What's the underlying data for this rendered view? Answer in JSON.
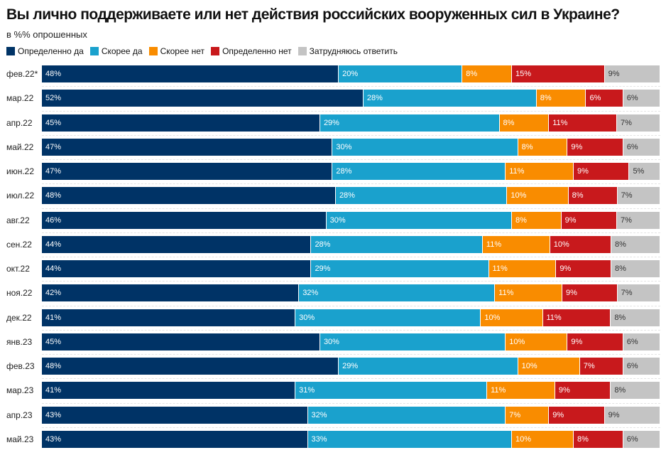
{
  "chart_data": {
    "type": "bar",
    "orientation": "horizontal",
    "stacked": true,
    "title": "Вы лично поддерживаете или нет действия российских вооруженных сил в Украине?",
    "subtitle": "в %% опрошенных",
    "legend_position": "top-left",
    "grid": false,
    "categories": [
      "фев.22*",
      "мар.22",
      "апр.22",
      "май.22",
      "июн.22",
      "июл.22",
      "авг.22",
      "сен.22",
      "окт.22",
      "ноя.22",
      "дек.22",
      "янв.23",
      "фев.23",
      "мар.23",
      "апр.23",
      "май.23"
    ],
    "series": [
      {
        "name": "Определенно да",
        "color": "#003366",
        "values": [
          48,
          52,
          45,
          47,
          47,
          48,
          46,
          44,
          44,
          42,
          41,
          45,
          48,
          41,
          43,
          43
        ]
      },
      {
        "name": "Скорее да",
        "color": "#1aa1cd",
        "values": [
          20,
          28,
          29,
          30,
          28,
          28,
          30,
          28,
          29,
          32,
          30,
          30,
          29,
          31,
          32,
          33
        ]
      },
      {
        "name": "Скорее нет",
        "color": "#f98c00",
        "values": [
          8,
          8,
          8,
          8,
          11,
          10,
          8,
          11,
          11,
          11,
          10,
          10,
          10,
          11,
          7,
          10
        ]
      },
      {
        "name": "Определенно нет",
        "color": "#c8191c",
        "values": [
          15,
          6,
          11,
          9,
          9,
          8,
          9,
          10,
          9,
          9,
          11,
          9,
          7,
          9,
          9,
          8
        ]
      },
      {
        "name": "Затрудняюсь ответить",
        "color": "#c4c4c4",
        "values": [
          9,
          6,
          7,
          6,
          5,
          7,
          7,
          8,
          8,
          7,
          8,
          6,
          6,
          8,
          9,
          6
        ]
      }
    ],
    "value_suffix": "%"
  }
}
